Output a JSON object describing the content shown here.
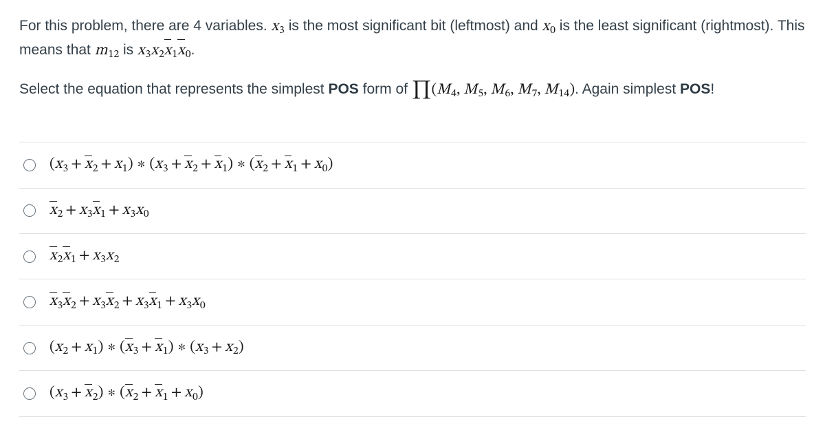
{
  "intro": {
    "part1": "For this problem, there are 4 variables. ",
    "x3": "x3",
    "part2": " is the most significant bit (leftmost) and ",
    "x0": "x0",
    "part3": " is the least significant (rightmost). This means that ",
    "m12": "m12",
    "part4": " is ",
    "m12_expr": "x3 x2 x̄1 x̄0",
    "part5": "."
  },
  "prompt": {
    "part1": "Select the equation that represents the simplest ",
    "pos1": "POS",
    "part2": " form of ",
    "prod_label": "∏(M4, M5, M6, M7, M14)",
    "maxterms": [
      "M4",
      "M5",
      "M6",
      "M7",
      "M14"
    ],
    "part3": ". Again simplest ",
    "pos2": "POS",
    "part4": "!"
  },
  "options": [
    {
      "desc": "(x3 + x̄2 + x1) * (x3 + x̄2 + x̄1) * (x̄2 + x̄1 + x0)"
    },
    {
      "desc": "x̄2 + x3 x̄1 + x3 x0"
    },
    {
      "desc": "x̄2 x̄1 + x3 x2"
    },
    {
      "desc": "x̄3 x̄2 + x3 x̄2 + x3 x̄1 + x3 x0"
    },
    {
      "desc": "(x2 + x1) * (x̄3 + x̄1) * (x3 + x2)"
    },
    {
      "desc": "(x3 + x̄2) * (x̄2 + x̄1 + x0)"
    }
  ],
  "labels": {
    "option_name": "answer-option",
    "radio_name": "option-radio"
  }
}
